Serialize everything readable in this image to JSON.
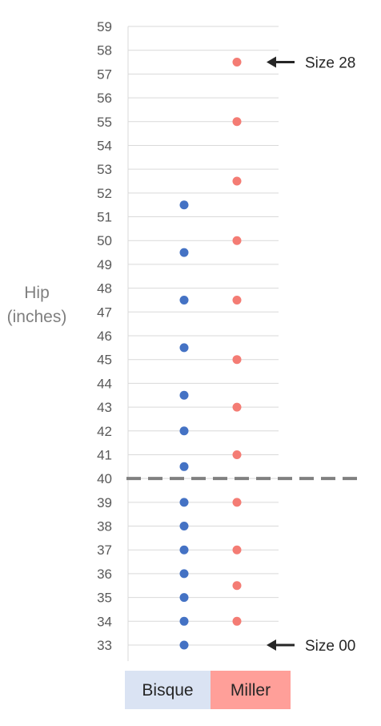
{
  "chart_data": {
    "type": "scatter",
    "categories": [
      "Bisque",
      "Miller"
    ],
    "ylabel_lines": [
      "Hip",
      "(inches)"
    ],
    "ylim": [
      33,
      59
    ],
    "yticks": [
      33,
      34,
      35,
      36,
      37,
      38,
      39,
      40,
      41,
      42,
      43,
      44,
      45,
      46,
      47,
      48,
      49,
      50,
      51,
      52,
      53,
      54,
      55,
      56,
      57,
      58,
      59
    ],
    "grid": true,
    "reference_line": {
      "y": 40,
      "style": "dashed"
    },
    "series": [
      {
        "name": "Bisque",
        "color": "#4472c4",
        "values": [
          33,
          34,
          35,
          36,
          37,
          38,
          39,
          40.5,
          42,
          43.5,
          45.5,
          47.5,
          49.5,
          51.5
        ]
      },
      {
        "name": "Miller",
        "color": "#f47c74",
        "values": [
          34,
          35.5,
          37,
          39,
          41,
          43,
          45,
          47.5,
          50,
          52.5,
          55,
          57.5
        ]
      }
    ],
    "annotations": [
      {
        "text": "Size 28",
        "y": 57.5
      },
      {
        "text": "Size 00",
        "y": 33
      }
    ],
    "legend": [
      {
        "label": "Bisque",
        "color": "#dae3f3"
      },
      {
        "label": "Miller",
        "color": "#ff9f99"
      }
    ]
  }
}
